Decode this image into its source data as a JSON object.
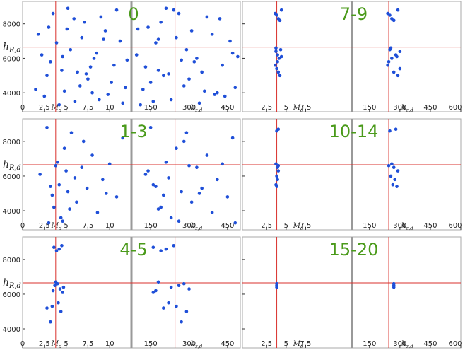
{
  "chart_data": {
    "type": "scatter",
    "y_label": {
      "base": "h",
      "sub": "R,d"
    },
    "md_label": {
      "base": "M",
      "sub": "d"
    },
    "hz_label": {
      "base": "h",
      "sub": "z,d"
    },
    "ylim": [
      2900,
      9300
    ],
    "yticks": [
      4000,
      6000,
      8000
    ],
    "reference": {
      "md": 3.8,
      "hz": 245,
      "hr": 6650
    },
    "point_color": "#1f4fd8",
    "reference_color": "#d9302c",
    "label_color": "#4a9a1a",
    "panels": [
      {
        "label": "0",
        "md_xlim": [
          0,
          12.5
        ],
        "md_xticks": [
          0,
          2.5,
          5,
          7.5,
          10
        ],
        "hz_xlim": [
          75,
          500
        ],
        "hz_xticks": [
          150,
          300,
          450
        ],
        "points": [
          [
            1.5,
            120,
            4200
          ],
          [
            2.2,
            95,
            6200
          ],
          [
            3,
            140,
            7800
          ],
          [
            4.5,
            180,
            5300
          ],
          [
            5.2,
            210,
            8900
          ],
          [
            6,
            160,
            3500
          ],
          [
            6.8,
            250,
            7200
          ],
          [
            7.5,
            300,
            4800
          ],
          [
            8.2,
            330,
            6000
          ],
          [
            9,
            370,
            8400
          ],
          [
            9.8,
            400,
            3900
          ],
          [
            10.5,
            430,
            5600
          ],
          [
            11.2,
            460,
            7000
          ],
          [
            11.8,
            480,
            4300
          ],
          [
            2.8,
            200,
            5000
          ],
          [
            3.5,
            260,
            8600
          ],
          [
            4.2,
            110,
            3300
          ],
          [
            5.5,
            290,
            6500
          ],
          [
            6.3,
            350,
            5200
          ],
          [
            7.1,
            190,
            8100
          ],
          [
            8.8,
            230,
            3600
          ],
          [
            9.5,
            310,
            7600
          ],
          [
            10.2,
            150,
            4600
          ],
          [
            12,
            270,
            5900
          ],
          [
            1.8,
            390,
            7400
          ],
          [
            2.5,
            440,
            3800
          ],
          [
            3.9,
            170,
            6900
          ],
          [
            4.8,
            360,
            4100
          ],
          [
            5.9,
            420,
            8300
          ],
          [
            7.8,
            130,
            5500
          ],
          [
            8.5,
            470,
            6300
          ],
          [
            10.8,
            240,
            8800
          ],
          [
            11.5,
            340,
            3400
          ],
          [
            6.6,
            280,
            4400
          ],
          [
            3.2,
            320,
            5800
          ],
          [
            9.3,
            180,
            7100
          ],
          [
            4.6,
            490,
            6100
          ],
          [
            7.3,
            220,
            5100
          ],
          [
            5.1,
            100,
            7700
          ],
          [
            8,
            410,
            4000
          ]
        ]
      },
      {
        "label": "7-9",
        "md_xlim": [
          -0.6,
          13.4
        ],
        "md_xticks": [
          2.5,
          5,
          7.5
        ],
        "hz_xlim": [
          62,
          600
        ],
        "hz_xticks": [
          150,
          300,
          450,
          600
        ],
        "points": [
          [
            3.6,
            240,
            8600
          ],
          [
            3.8,
            250,
            8500
          ],
          [
            4,
            260,
            8300
          ],
          [
            4.2,
            270,
            8200
          ],
          [
            4.4,
            290,
            8800
          ],
          [
            3.7,
            300,
            6400
          ],
          [
            3.9,
            280,
            6200
          ],
          [
            4.1,
            260,
            6000
          ],
          [
            4.3,
            250,
            6500
          ],
          [
            3.6,
            240,
            5600
          ],
          [
            3.8,
            300,
            5400
          ],
          [
            4,
            270,
            5200
          ],
          [
            4.2,
            290,
            5000
          ],
          [
            3.7,
            255,
            6600
          ],
          [
            4.4,
            285,
            6100
          ],
          [
            3.9,
            245,
            5800
          ]
        ]
      },
      {
        "label": "1-3",
        "md_xlim": [
          0,
          12.5
        ],
        "md_xticks": [
          0,
          2.5,
          5,
          7.5,
          10
        ],
        "hz_xlim": [
          75,
          500
        ],
        "hz_xticks": [
          150,
          300,
          450
        ],
        "points": [
          [
            2,
            130,
            6100
          ],
          [
            2.8,
            150,
            8800
          ],
          [
            3.2,
            170,
            5400
          ],
          [
            3.6,
            190,
            4200
          ],
          [
            4,
            210,
            6800
          ],
          [
            4.4,
            230,
            3600
          ],
          [
            4.8,
            250,
            7600
          ],
          [
            5.2,
            270,
            5100
          ],
          [
            5.6,
            290,
            8500
          ],
          [
            6.2,
            310,
            4500
          ],
          [
            6.8,
            330,
            6500
          ],
          [
            7.4,
            350,
            5300
          ],
          [
            8,
            370,
            7200
          ],
          [
            8.6,
            390,
            3900
          ],
          [
            9.2,
            410,
            5800
          ],
          [
            10,
            430,
            6700
          ],
          [
            10.8,
            450,
            4800
          ],
          [
            11.5,
            470,
            8200
          ],
          [
            3,
            480,
            3300
          ],
          [
            4.2,
            160,
            5500
          ],
          [
            5,
            140,
            6300
          ],
          [
            3.4,
            200,
            4900
          ],
          [
            6,
            220,
            5900
          ],
          [
            4.6,
            260,
            3400
          ],
          [
            7,
            280,
            8000
          ],
          [
            3.8,
            300,
            6600
          ],
          [
            5.4,
            180,
            4100
          ],
          [
            9.6,
            340,
            5000
          ]
        ]
      },
      {
        "label": "10-14",
        "md_xlim": [
          -0.6,
          13.4
        ],
        "md_xticks": [
          2.5,
          5,
          7.5
        ],
        "hz_xlim": [
          62,
          600
        ],
        "hz_xticks": [
          150,
          300,
          450,
          600
        ],
        "points": [
          [
            3.8,
            250,
            8600
          ],
          [
            4,
            280,
            8700
          ],
          [
            3.7,
            260,
            6700
          ],
          [
            3.9,
            270,
            6500
          ],
          [
            4,
            290,
            6300
          ],
          [
            3.8,
            255,
            6000
          ],
          [
            3.9,
            275,
            5800
          ],
          [
            3.7,
            265,
            5500
          ],
          [
            4,
            245,
            6600
          ],
          [
            3.8,
            285,
            5400
          ]
        ]
      },
      {
        "label": "4-5",
        "md_xlim": [
          0,
          12.5
        ],
        "md_xticks": [
          0,
          2.5,
          5,
          7.5,
          10
        ],
        "hz_xlim": [
          75,
          500
        ],
        "hz_xticks": [
          150,
          300,
          450
        ],
        "points": [
          [
            3.6,
            160,
            8700
          ],
          [
            3.9,
            190,
            8500
          ],
          [
            4.2,
            210,
            8600
          ],
          [
            4.5,
            240,
            8800
          ],
          [
            3.7,
            260,
            6500
          ],
          [
            4,
            280,
            6600
          ],
          [
            4.3,
            300,
            6300
          ],
          [
            4.6,
            160,
            6100
          ],
          [
            3.8,
            180,
            6700
          ],
          [
            4.1,
            220,
            5500
          ],
          [
            3.4,
            250,
            5300
          ],
          [
            2.8,
            200,
            5200
          ],
          [
            3.2,
            270,
            4400
          ],
          [
            4.4,
            290,
            5000
          ],
          [
            3.5,
            170,
            6200
          ],
          [
            4.7,
            230,
            6400
          ]
        ]
      },
      {
        "label": "15-20",
        "md_xlim": [
          -0.6,
          13.4
        ],
        "md_xticks": [
          2.5,
          5,
          7.5
        ],
        "hz_xlim": [
          62,
          600
        ],
        "hz_xticks": [
          150,
          300,
          450,
          600
        ],
        "points": [
          [
            3.8,
            270,
            6600
          ],
          [
            3.8,
            270,
            6500
          ],
          [
            3.8,
            270,
            6400
          ]
        ]
      }
    ]
  }
}
